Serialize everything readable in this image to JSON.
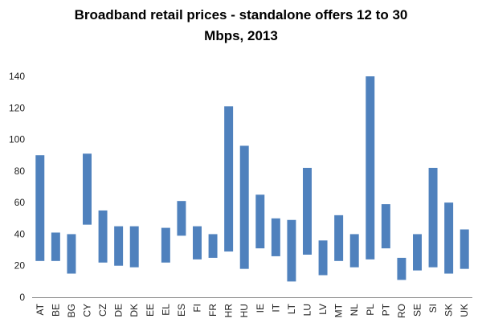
{
  "chart_data": {
    "type": "bar",
    "subtype": "floating-range",
    "title_line1": "Broadband retail prices - standalone offers 12 to 30",
    "title_line2": "Mbps, 2013",
    "xlabel": "",
    "ylabel": "",
    "ylim": [
      0,
      140
    ],
    "yticks": [
      0,
      20,
      40,
      60,
      80,
      100,
      120,
      140
    ],
    "grid": false,
    "bar_color": "#4F81BD",
    "categories": [
      "AT",
      "BE",
      "BG",
      "CY",
      "CZ",
      "DE",
      "DK",
      "EE",
      "EL",
      "ES",
      "FI",
      "FR",
      "HR",
      "HU",
      "IE",
      "IT",
      "LT",
      "LU",
      "LV",
      "MT",
      "NL",
      "PL",
      "PT",
      "RO",
      "SE",
      "SI",
      "SK",
      "UK"
    ],
    "low": [
      23,
      23,
      15,
      46,
      22,
      20,
      19,
      null,
      22,
      39,
      24,
      25,
      29,
      18,
      31,
      26,
      10,
      27,
      14,
      23,
      19,
      24,
      31,
      11,
      17,
      19,
      15,
      18
    ],
    "high": [
      90,
      41,
      40,
      91,
      55,
      45,
      45,
      null,
      44,
      61,
      45,
      40,
      121,
      96,
      65,
      50,
      49,
      82,
      36,
      52,
      40,
      140,
      59,
      25,
      40,
      82,
      60,
      43
    ]
  }
}
